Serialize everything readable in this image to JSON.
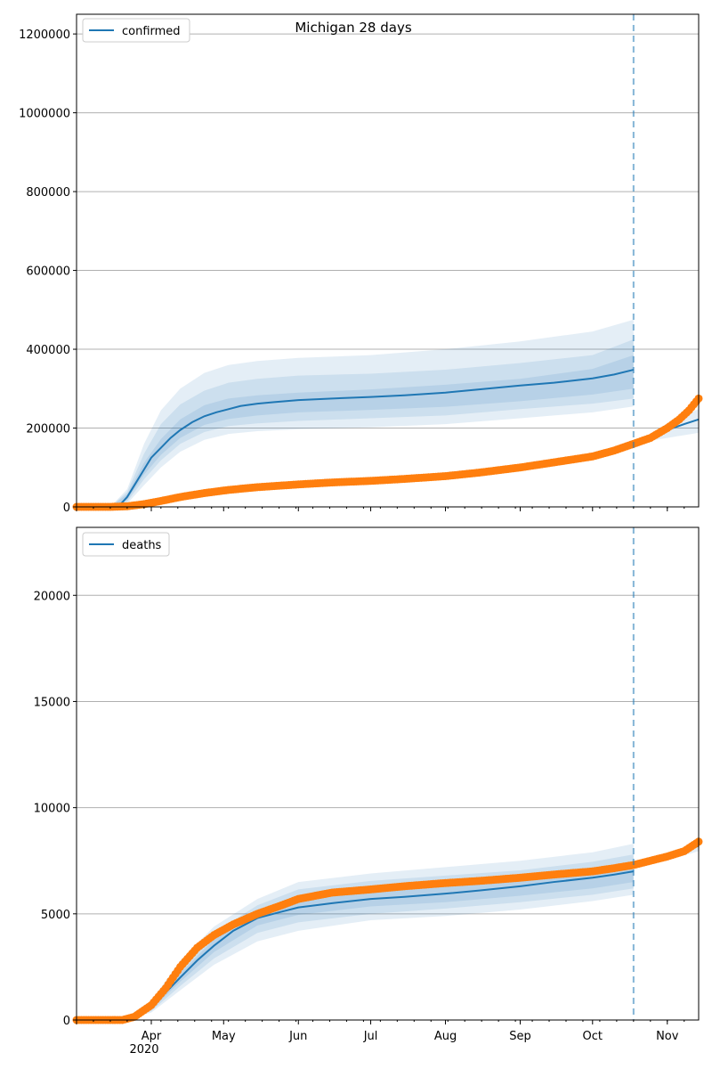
{
  "colors": {
    "model": "#1f77b4",
    "observed": "#ff7f0e",
    "grid": "#b0b0b0",
    "band": "#1f77b4",
    "divider": "#1f77b4"
  },
  "chart_data": [
    {
      "type": "line",
      "title": "Michigan 28 days",
      "legend": {
        "entries": [
          "confirmed"
        ],
        "placement": "top-left"
      },
      "grid": {
        "y": true,
        "x": false
      },
      "xlim": [
        "2020-03-01",
        "2020-11-14"
      ],
      "ylim": [
        0,
        1250000
      ],
      "yticks": [
        0,
        200000,
        400000,
        600000,
        800000,
        1000000,
        1200000
      ],
      "ytick_labels": [
        "0",
        "200000",
        "400000",
        "600000",
        "800000",
        "1000000",
        "1200000"
      ],
      "x_tick_labels": [],
      "forecast_start": "2020-10-18",
      "model_median": {
        "name": "confirmed",
        "x": [
          "2020-03-01",
          "2020-03-15",
          "2020-03-19",
          "2020-03-22",
          "2020-03-25",
          "2020-03-29",
          "2020-04-01",
          "2020-04-05",
          "2020-04-09",
          "2020-04-13",
          "2020-04-18",
          "2020-04-23",
          "2020-04-28",
          "2020-05-03",
          "2020-05-08",
          "2020-05-15",
          "2020-05-22",
          "2020-06-01",
          "2020-06-15",
          "2020-07-01",
          "2020-07-15",
          "2020-08-01",
          "2020-08-15",
          "2020-09-01",
          "2020-09-15",
          "2020-10-01",
          "2020-10-10",
          "2020-10-18",
          "2020-10-25",
          "2020-11-01",
          "2020-11-08",
          "2020-11-14"
        ],
        "y": [
          0,
          0,
          5000,
          25000,
          55000,
          95000,
          125000,
          150000,
          175000,
          195000,
          215000,
          230000,
          240000,
          248000,
          256000,
          262000,
          266000,
          271000,
          275000,
          279000,
          283000,
          290000,
          298000,
          308000,
          315000,
          326000,
          336000,
          348000,
          180000,
          195000,
          210000,
          222000
        ]
      },
      "bands": [
        {
          "x": [
            "2020-03-15",
            "2020-03-22",
            "2020-03-29",
            "2020-04-05",
            "2020-04-13",
            "2020-04-23",
            "2020-05-03",
            "2020-05-15",
            "2020-06-01",
            "2020-07-01",
            "2020-08-01",
            "2020-09-01",
            "2020-10-01",
            "2020-10-18"
          ],
          "lower": [
            0,
            8000,
            55000,
            100000,
            140000,
            170000,
            185000,
            192000,
            197000,
            202000,
            210000,
            225000,
            240000,
            255000
          ],
          "upper": [
            0,
            45000,
            160000,
            245000,
            300000,
            340000,
            360000,
            370000,
            378000,
            385000,
            400000,
            420000,
            445000,
            475000
          ]
        },
        {
          "x": [
            "2020-03-15",
            "2020-03-22",
            "2020-03-29",
            "2020-04-05",
            "2020-04-13",
            "2020-04-23",
            "2020-05-03",
            "2020-05-15",
            "2020-06-01",
            "2020-07-01",
            "2020-08-01",
            "2020-09-01",
            "2020-10-01",
            "2020-10-18"
          ],
          "lower": [
            0,
            13000,
            70000,
            118000,
            160000,
            190000,
            205000,
            212000,
            218000,
            225000,
            232000,
            248000,
            262000,
            275000
          ],
          "upper": [
            0,
            38000,
            135000,
            210000,
            260000,
            295000,
            315000,
            325000,
            333000,
            338000,
            348000,
            365000,
            385000,
            425000
          ]
        },
        {
          "x": [
            "2020-03-15",
            "2020-03-22",
            "2020-03-29",
            "2020-04-05",
            "2020-04-13",
            "2020-04-23",
            "2020-05-03",
            "2020-05-15",
            "2020-06-01",
            "2020-07-01",
            "2020-08-01",
            "2020-09-01",
            "2020-10-01",
            "2020-10-18"
          ],
          "lower": [
            0,
            18000,
            82000,
            132000,
            175000,
            208000,
            223000,
            232000,
            240000,
            246000,
            254000,
            268000,
            285000,
            300000
          ],
          "upper": [
            0,
            32000,
            112000,
            172000,
            222000,
            258000,
            275000,
            283000,
            290000,
            298000,
            310000,
            325000,
            350000,
            385000
          ]
        },
        {
          "x": [
            "2020-10-18",
            "2020-10-25",
            "2020-11-01",
            "2020-11-08",
            "2020-11-14"
          ],
          "lower": [
            160000,
            168000,
            175000,
            182000,
            188000
          ],
          "upper": [
            168000,
            185000,
            212000,
            232000,
            248000
          ]
        }
      ],
      "observed": {
        "x": [
          "2020-03-01",
          "2020-03-15",
          "2020-03-22",
          "2020-03-29",
          "2020-04-05",
          "2020-04-13",
          "2020-04-23",
          "2020-05-03",
          "2020-05-15",
          "2020-06-01",
          "2020-06-15",
          "2020-07-01",
          "2020-07-15",
          "2020-08-01",
          "2020-08-15",
          "2020-09-01",
          "2020-09-15",
          "2020-10-01",
          "2020-10-10",
          "2020-10-18",
          "2020-10-25",
          "2020-11-01",
          "2020-11-06",
          "2020-11-10",
          "2020-11-14"
        ],
        "y": [
          0,
          0,
          1500,
          7000,
          15000,
          25000,
          35000,
          43000,
          50000,
          57000,
          62000,
          66000,
          71000,
          78000,
          87000,
          100000,
          113000,
          128000,
          143000,
          160000,
          175000,
          200000,
          222000,
          245000,
          275000
        ]
      }
    },
    {
      "type": "line",
      "title": "",
      "legend": {
        "entries": [
          "deaths"
        ],
        "placement": "top-left"
      },
      "grid": {
        "y": true,
        "x": false
      },
      "xlim": [
        "2020-03-01",
        "2020-11-14"
      ],
      "ylim": [
        0,
        23200
      ],
      "yticks": [
        0,
        5000,
        10000,
        15000,
        20000
      ],
      "ytick_labels": [
        "0",
        "5000",
        "10000",
        "15000",
        "20000"
      ],
      "x_ticks": [
        "2020-04-01",
        "2020-05-01",
        "2020-06-01",
        "2020-07-01",
        "2020-08-01",
        "2020-09-01",
        "2020-10-01",
        "2020-11-01"
      ],
      "x_tick_labels": [
        "Apr",
        "May",
        "Jun",
        "Jul",
        "Aug",
        "Sep",
        "Oct",
        "Nov"
      ],
      "x_year_label": "2020",
      "forecast_start": "2020-10-18",
      "model_median": {
        "name": "deaths",
        "x": [
          "2020-03-01",
          "2020-03-20",
          "2020-03-25",
          "2020-04-01",
          "2020-04-07",
          "2020-04-13",
          "2020-04-20",
          "2020-04-27",
          "2020-05-05",
          "2020-05-15",
          "2020-05-25",
          "2020-06-01",
          "2020-06-15",
          "2020-07-01",
          "2020-07-15",
          "2020-08-01",
          "2020-08-15",
          "2020-09-01",
          "2020-09-15",
          "2020-10-01",
          "2020-10-10",
          "2020-10-18",
          "2020-10-25",
          "2020-11-01",
          "2020-11-08",
          "2020-11-14"
        ],
        "y": [
          0,
          0,
          150,
          600,
          1300,
          2000,
          2800,
          3500,
          4200,
          4800,
          5100,
          5300,
          5500,
          5700,
          5800,
          5950,
          6100,
          6300,
          6500,
          6700,
          6850,
          7000,
          7450,
          7700,
          7950,
          8200
        ]
      },
      "bands": [
        {
          "x": [
            "2020-03-20",
            "2020-04-01",
            "2020-04-13",
            "2020-04-27",
            "2020-05-15",
            "2020-06-01",
            "2020-07-01",
            "2020-08-01",
            "2020-09-01",
            "2020-10-01",
            "2020-10-18"
          ],
          "lower": [
            0,
            350,
            1400,
            2600,
            3700,
            4200,
            4700,
            4900,
            5200,
            5600,
            5900
          ],
          "upper": [
            0,
            900,
            2800,
            4400,
            5700,
            6500,
            6900,
            7200,
            7500,
            7900,
            8300
          ]
        },
        {
          "x": [
            "2020-03-20",
            "2020-04-01",
            "2020-04-13",
            "2020-04-27",
            "2020-05-15",
            "2020-06-01",
            "2020-07-01",
            "2020-08-01",
            "2020-09-01",
            "2020-10-01",
            "2020-10-18"
          ],
          "lower": [
            0,
            420,
            1600,
            2900,
            4100,
            4600,
            5000,
            5250,
            5550,
            5900,
            6200
          ],
          "upper": [
            0,
            800,
            2500,
            4100,
            5400,
            6150,
            6550,
            6800,
            7050,
            7450,
            7800
          ]
        },
        {
          "x": [
            "2020-03-20",
            "2020-04-01",
            "2020-04-13",
            "2020-04-27",
            "2020-05-15",
            "2020-06-01",
            "2020-07-01",
            "2020-08-01",
            "2020-09-01",
            "2020-10-01",
            "2020-10-18"
          ],
          "lower": [
            0,
            500,
            1800,
            3200,
            4450,
            4950,
            5350,
            5550,
            5850,
            6200,
            6500
          ],
          "upper": [
            0,
            700,
            2200,
            3800,
            5100,
            5650,
            6050,
            6300,
            6650,
            7050,
            7400
          ]
        },
        {
          "x": [
            "2020-10-18",
            "2020-10-25",
            "2020-11-01",
            "2020-11-08",
            "2020-11-14"
          ],
          "lower": [
            7200,
            7350,
            7550,
            7750,
            7950
          ],
          "upper": [
            7400,
            7600,
            7850,
            8150,
            8450
          ]
        }
      ],
      "observed": {
        "x": [
          "2020-03-01",
          "2020-03-20",
          "2020-03-25",
          "2020-04-01",
          "2020-04-07",
          "2020-04-13",
          "2020-04-20",
          "2020-04-27",
          "2020-05-05",
          "2020-05-15",
          "2020-05-25",
          "2020-06-01",
          "2020-06-15",
          "2020-07-01",
          "2020-07-15",
          "2020-08-01",
          "2020-08-15",
          "2020-09-01",
          "2020-09-15",
          "2020-10-01",
          "2020-10-10",
          "2020-10-18",
          "2020-10-25",
          "2020-11-01",
          "2020-11-08",
          "2020-11-14"
        ],
        "y": [
          0,
          0,
          150,
          700,
          1500,
          2500,
          3400,
          4000,
          4500,
          5000,
          5400,
          5700,
          6000,
          6150,
          6300,
          6450,
          6550,
          6700,
          6850,
          7000,
          7150,
          7300,
          7500,
          7700,
          7950,
          8400
        ]
      }
    }
  ]
}
